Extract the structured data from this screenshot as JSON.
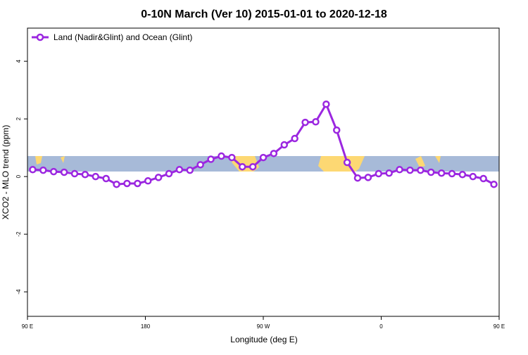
{
  "chart_data": {
    "type": "line",
    "title": "0-10N March (Ver 10)   2015-01-01 to 2020-12-18",
    "x_label": "Longitude (deg E)",
    "y_label": "XCO2 - MLO trend (ppm)",
    "xlim": [
      90,
      450
    ],
    "xticks": [
      {
        "value": 90,
        "label": "90 E"
      },
      {
        "value": 180,
        "label": "180"
      },
      {
        "value": 270,
        "label": "90 W"
      },
      {
        "value": 360,
        "label": "0"
      },
      {
        "value": 450,
        "label": "90 E"
      }
    ],
    "xticks_extra": [],
    "ylim": [
      -4.85,
      5.15
    ],
    "yticks": [
      -4,
      -2,
      0,
      2,
      4
    ],
    "legend": "top-left",
    "series": [
      {
        "name": "Land (Nadir&Glint) and Ocean (Glint)",
        "color": "#9b27e0",
        "x": [
          94,
          102,
          110,
          118,
          126,
          134,
          142,
          150,
          158,
          166,
          174,
          182,
          190,
          198,
          206,
          214,
          222,
          230,
          238,
          246,
          254,
          262,
          270,
          278,
          286,
          294,
          302,
          310,
          318,
          326,
          334,
          342,
          350,
          358,
          366,
          374,
          382,
          390,
          398,
          406,
          414,
          422,
          430,
          438,
          446
        ],
        "values": [
          0.24,
          0.22,
          0.17,
          0.15,
          0.1,
          0.07,
          0.0,
          -0.07,
          -0.27,
          -0.24,
          -0.24,
          -0.15,
          -0.03,
          0.1,
          0.24,
          0.22,
          0.41,
          0.6,
          0.71,
          0.66,
          0.34,
          0.34,
          0.66,
          0.8,
          1.1,
          1.32,
          1.88,
          1.9,
          2.51,
          1.61,
          0.49,
          -0.05,
          -0.03,
          0.1,
          0.12,
          0.24,
          0.22,
          0.22,
          0.15,
          0.12,
          0.1,
          0.07,
          0.0,
          -0.07,
          -0.27
        ]
      }
    ]
  }
}
